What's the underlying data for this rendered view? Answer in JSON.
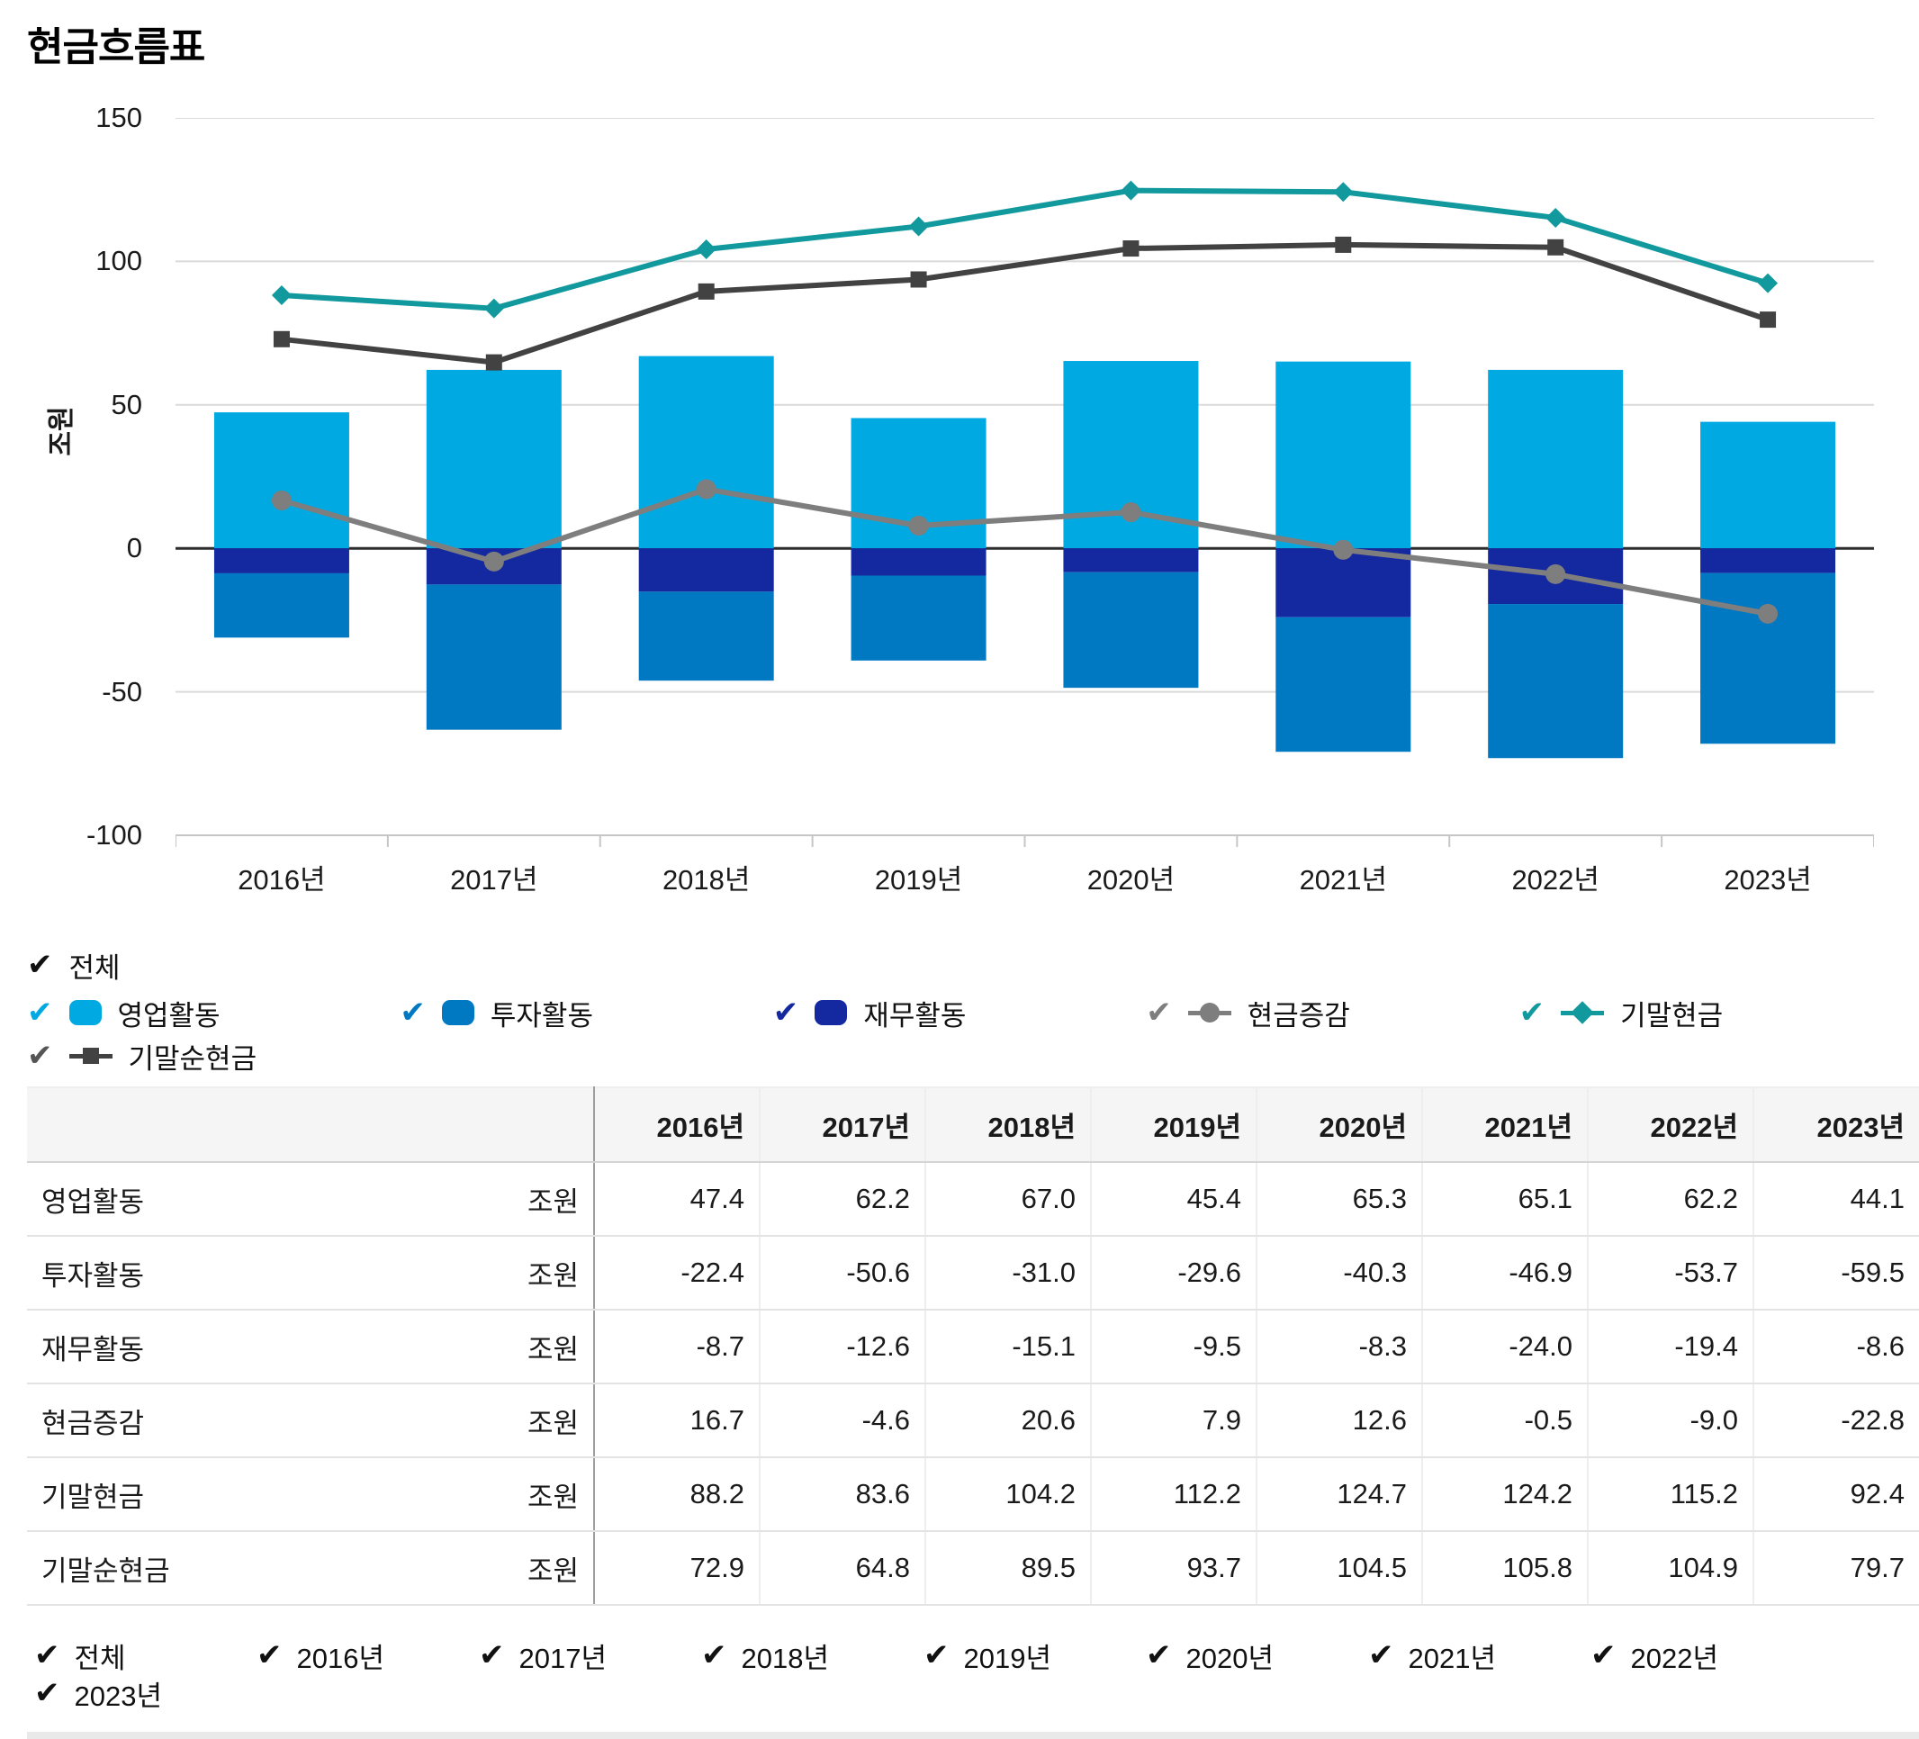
{
  "title": "현금흐름표",
  "chart_data": {
    "type": "bar+line",
    "title": "현금흐름표",
    "ylabel": "조원",
    "ylim": [
      -100,
      150
    ],
    "yticks": [
      150,
      100,
      50,
      0,
      -50,
      -100
    ],
    "grid": "horizontal",
    "categories": [
      "2016년",
      "2017년",
      "2018년",
      "2019년",
      "2020년",
      "2021년",
      "2022년",
      "2023년"
    ],
    "bar_series": [
      {
        "name": "영업활동",
        "color": "#00A9E1",
        "values": [
          47.4,
          62.2,
          67.0,
          45.4,
          65.3,
          65.1,
          62.2,
          44.1
        ]
      },
      {
        "name": "투자활동",
        "color": "#0078C2",
        "values": [
          -22.4,
          -50.6,
          -31.0,
          -29.6,
          -40.3,
          -46.9,
          -53.7,
          -59.5
        ]
      },
      {
        "name": "재무활동",
        "color": "#1428A0",
        "values": [
          -8.7,
          -12.6,
          -15.1,
          -9.5,
          -8.3,
          -24.0,
          -19.4,
          -8.6
        ]
      }
    ],
    "line_series": [
      {
        "name": "현금증감",
        "color": "#7E7E7E",
        "marker": "circle",
        "values": [
          16.7,
          -4.6,
          20.6,
          7.9,
          12.6,
          -0.5,
          -9.0,
          -22.8
        ]
      },
      {
        "name": "기말현금",
        "color": "#11999E",
        "marker": "diamond",
        "values": [
          88.2,
          83.6,
          104.2,
          112.2,
          124.7,
          124.2,
          115.2,
          92.4
        ]
      },
      {
        "name": "기말순현금",
        "color": "#424242",
        "marker": "square",
        "values": [
          72.9,
          64.8,
          89.5,
          93.7,
          104.5,
          105.8,
          104.9,
          79.7
        ]
      }
    ]
  },
  "legend": {
    "all": {
      "label": "전체",
      "check_color": "#111111"
    },
    "series_row": [
      {
        "label": "영업활동",
        "color": "#00A9E1",
        "marker": "swatch"
      },
      {
        "label": "투자활동",
        "color": "#0078C2",
        "marker": "swatch"
      },
      {
        "label": "재무활동",
        "color": "#1428A0",
        "marker": "swatch"
      },
      {
        "label": "현금증감",
        "color": "#7E7E7E",
        "marker": "circle"
      },
      {
        "label": "기말현금",
        "color": "#11999E",
        "marker": "diamond"
      }
    ],
    "last_row": [
      {
        "label": "기말순현금",
        "color": "#424242",
        "marker": "square",
        "check_color": "#555555"
      }
    ]
  },
  "table": {
    "col_headers": [
      "2016년",
      "2017년",
      "2018년",
      "2019년",
      "2020년",
      "2021년",
      "2022년",
      "2023년"
    ],
    "rows": [
      {
        "label": "영업활동",
        "unit": "조원",
        "values": [
          "47.4",
          "62.2",
          "67.0",
          "45.4",
          "65.3",
          "65.1",
          "62.2",
          "44.1"
        ]
      },
      {
        "label": "투자활동",
        "unit": "조원",
        "values": [
          "-22.4",
          "-50.6",
          "-31.0",
          "-29.6",
          "-40.3",
          "-46.9",
          "-53.7",
          "-59.5"
        ]
      },
      {
        "label": "재무활동",
        "unit": "조원",
        "values": [
          "-8.7",
          "-12.6",
          "-15.1",
          "-9.5",
          "-8.3",
          "-24.0",
          "-19.4",
          "-8.6"
        ]
      },
      {
        "label": "현금증감",
        "unit": "조원",
        "values": [
          "16.7",
          "-4.6",
          "20.6",
          "7.9",
          "12.6",
          "-0.5",
          "-9.0",
          "-22.8"
        ]
      },
      {
        "label": "기말현금",
        "unit": "조원",
        "values": [
          "88.2",
          "83.6",
          "104.2",
          "112.2",
          "124.7",
          "124.2",
          "115.2",
          "92.4"
        ]
      },
      {
        "label": "기말순현금",
        "unit": "조원",
        "values": [
          "72.9",
          "64.8",
          "89.5",
          "93.7",
          "104.5",
          "105.8",
          "104.9",
          "79.7"
        ]
      }
    ]
  },
  "filters": {
    "items": [
      "전체",
      "2016년",
      "2017년",
      "2018년",
      "2019년",
      "2020년",
      "2021년",
      "2022년",
      "2023년"
    ]
  }
}
